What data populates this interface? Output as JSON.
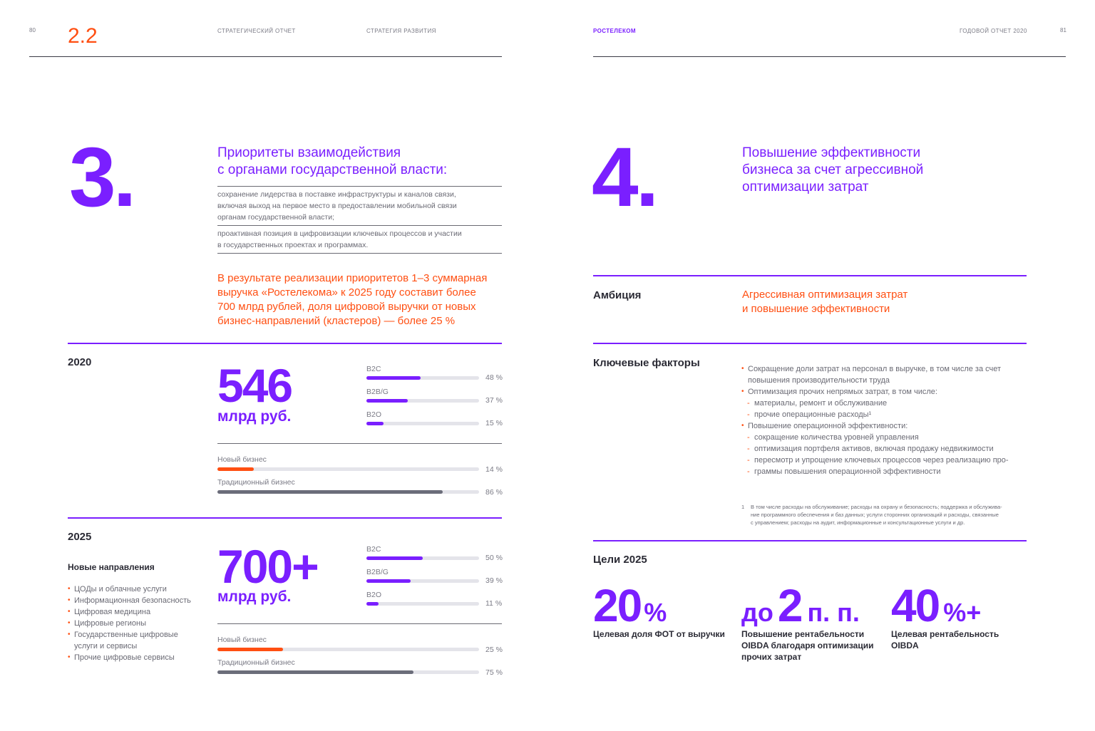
{
  "left_page": {
    "page_number": "80",
    "section_number": "2.2",
    "header_1": "СТРАТЕГИЧЕСКИЙ ОТЧЕТ",
    "header_2": "СТРАТЕГИЯ РАЗВИТИЯ",
    "priority_number": "3.",
    "priority_title": [
      "Приоритеты взаимодействия",
      "с органами государственной власти:"
    ],
    "priority_items": [
      [
        "сохранение лидерства в поставке инфраструктуры и каналов связи,",
        "включая выход на первое место в предоставлении мобильной связи",
        "органам государственной власти;"
      ],
      [
        "проактивная позиция в цифровизации ключевых процессов и участии",
        "в государственных проектах и программах."
      ]
    ],
    "result_text": [
      "В результате реализации приоритетов 1–3 суммарная",
      "выручка «Ростелекома» к 2025 году составит более",
      "700 млрд рублей, доля цифровой выручки от новых",
      "бизнес-направлений (кластеров) — более 25 %"
    ],
    "year_2020": {
      "label": "2020",
      "value": "546",
      "unit": "млрд руб.",
      "segments": [
        {
          "name": "B2C",
          "pct_label": "48 %",
          "value": 48
        },
        {
          "name": "B2B/G",
          "pct_label": "37 %",
          "value": 37
        },
        {
          "name": "B2O",
          "pct_label": "15 %",
          "value": 15
        }
      ],
      "business": [
        {
          "name": "Новый бизнес",
          "pct_label": "14 %",
          "value": 14
        },
        {
          "name": "Традиционный бизнес",
          "pct_label": "86 %",
          "value": 86
        }
      ]
    },
    "year_2025": {
      "label": "2025",
      "value": "700+",
      "unit": "млрд руб.",
      "new_directions_title": "Новые направления",
      "new_directions": [
        "ЦОДы и облачные услуги",
        "Информационная безопасность",
        "Цифровая медицина",
        "Цифровые регионы",
        "Государственные цифровые",
        "услуги и сервисы",
        "Прочие цифровые сервисы"
      ],
      "segments": [
        {
          "name": "B2C",
          "pct_label": "50 %",
          "value": 50
        },
        {
          "name": "B2B/G",
          "pct_label": "39 %",
          "value": 39
        },
        {
          "name": "B2O",
          "pct_label": "11 %",
          "value": 11
        }
      ],
      "business": [
        {
          "name": "Новый бизнес",
          "pct_label": "25 %",
          "value": 25
        },
        {
          "name": "Традиционный бизнес",
          "pct_label": "75 %",
          "value": 75
        }
      ]
    }
  },
  "right_page": {
    "brand": "РОСТЕЛЕКОМ",
    "header": "ГОДОВОЙ ОТЧЕТ 2020",
    "page_number": "81",
    "priority_number": "4.",
    "priority_title": [
      "Повышение эффективности",
      "бизнеса за счет агрессивной",
      "оптимизации затрат"
    ],
    "ambition_label": "Амбиция",
    "ambition_text": [
      "Агрессивная оптимизация затрат",
      "и повышение эффективности"
    ],
    "factors_label": "Ключевые факторы",
    "factors": {
      "f1": [
        "Сокращение доли затрат на персонал в выручке, в том числе за счет",
        "повышения производительности труда"
      ],
      "f2": "Оптимизация прочих непрямых затрат, в том числе:",
      "f2_sub": [
        "материалы, ремонт и обслуживание",
        "прочие операционные расходы¹"
      ],
      "f3": "Повышение операционной эффективности:",
      "f3_sub": [
        "сокращение количества уровней управления",
        "оптимизация портфеля активов, включая продажу недвижимости",
        "пересмотр и упрощение ключевых процессов через реализацию про-",
        "граммы повышения операционной эффективности"
      ]
    },
    "footnote_mark": "1",
    "footnote": [
      "В том числе расходы на обслуживание; расходы на охрану и безопасность; поддержка и обслужива-",
      "ние программного обеспечения и баз данных; услуги сторонних организаций и расходы, связанные",
      "с управлением; расходы на аудит, информационные и консультационные услуги и др."
    ],
    "goals_label": "Цели 2025",
    "goals": [
      {
        "prefix": "",
        "value": "20",
        "suffix": "%",
        "caption": [
          "Целевая доля ФОТ от выручки"
        ]
      },
      {
        "prefix": "до",
        "value": "2",
        "suffix": "п. п.",
        "caption": [
          "Повышение рентабельности",
          "OIBDA благодаря оптимизации",
          "прочих затрат"
        ]
      },
      {
        "prefix": "",
        "value": "40",
        "suffix": "%+",
        "caption": [
          "Целевая рентабельность",
          "OIBDA"
        ]
      }
    ]
  },
  "colors": {
    "purple": "#7a1fff",
    "orange": "#ff4f12",
    "gray_bar": "#6b6d7a",
    "track": "#e4e4ea"
  }
}
